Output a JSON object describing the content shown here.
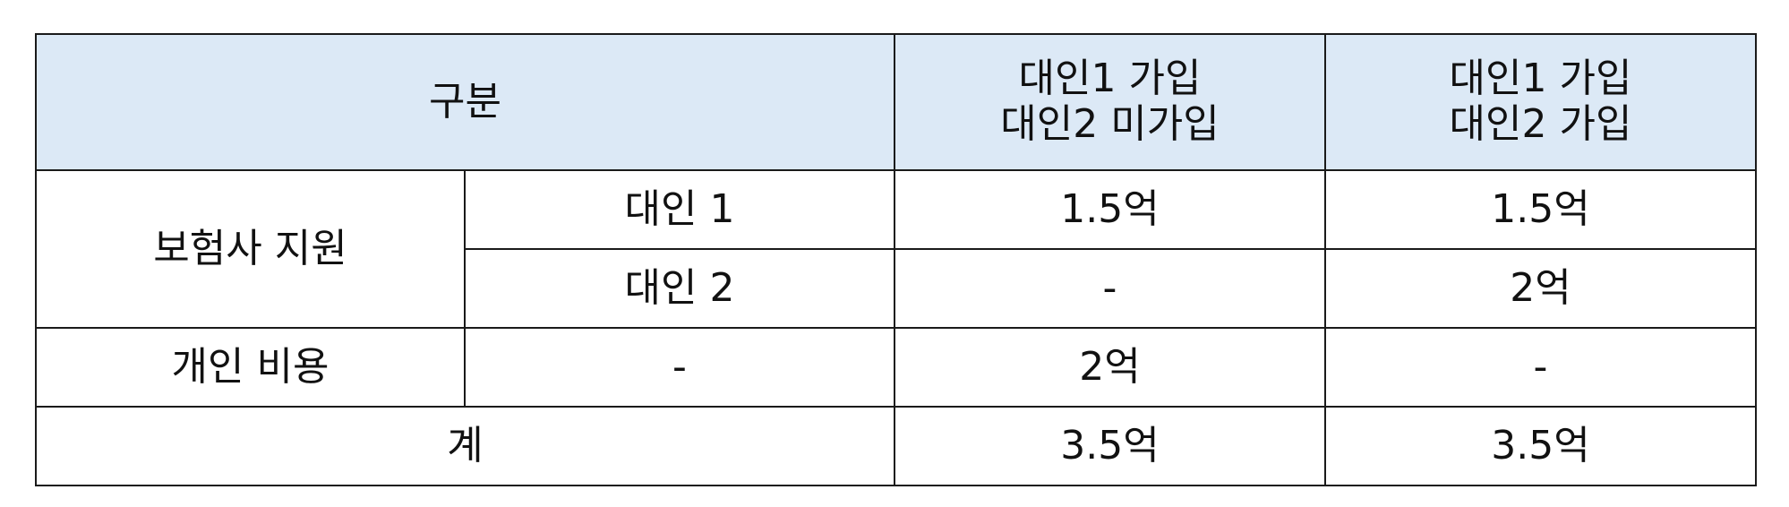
{
  "table": {
    "header": {
      "category": "구분",
      "col1": [
        "대인1 가입",
        "대인2 미가입"
      ],
      "col2": [
        "대인1 가입",
        "대인2 가입"
      ]
    },
    "rows": {
      "insurer_support": {
        "label": "보험사 지원",
        "liability1": {
          "label": "대인 1",
          "col1": "1.5억",
          "col2": "1.5억"
        },
        "liability2": {
          "label": "대인 2",
          "col1": "-",
          "col2": "2억"
        }
      },
      "personal_cost": {
        "label": "개인 비용",
        "sub": "-",
        "col1": "2억",
        "col2": "-"
      },
      "total": {
        "label": "계",
        "col1": "3.5억",
        "col2": "3.5억"
      }
    }
  }
}
